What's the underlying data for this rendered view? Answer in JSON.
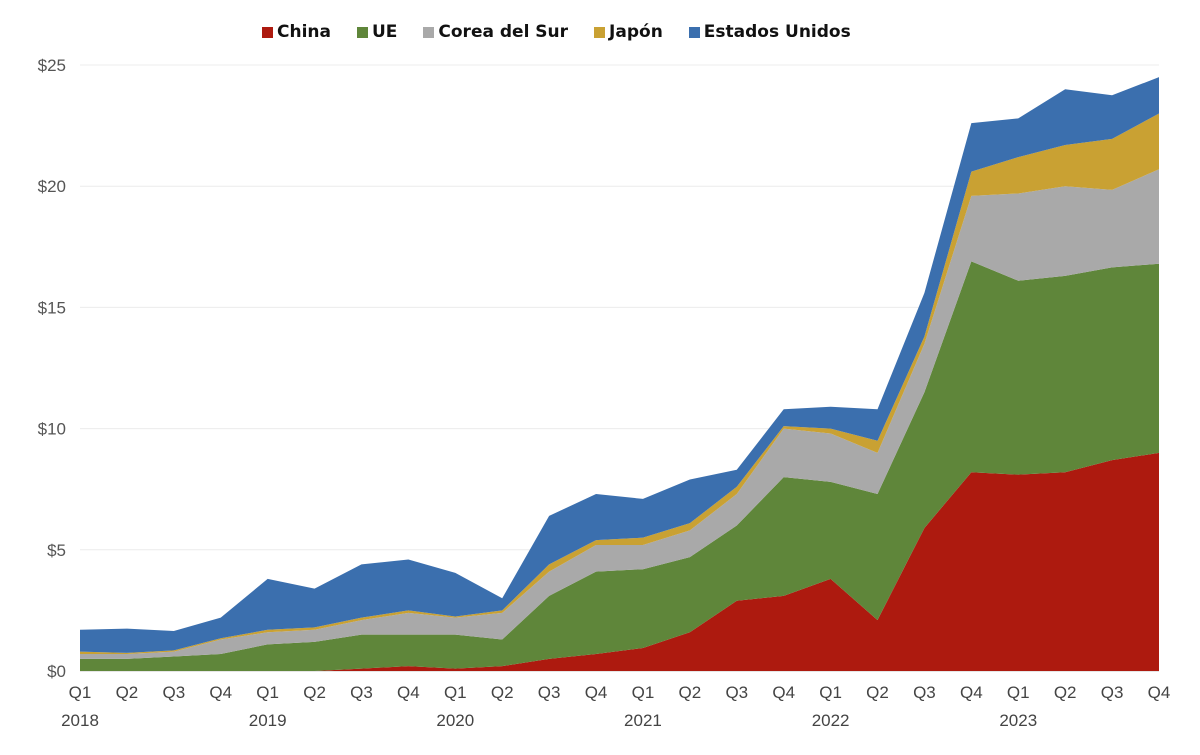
{
  "chart_data": {
    "type": "area",
    "stacked": true,
    "title": "",
    "xlabel": "",
    "ylabel": "",
    "ylim": [
      0,
      25
    ],
    "y_ticks": [
      "$0",
      "$5",
      "$10",
      "$15",
      "$20",
      "$25"
    ],
    "y_tick_values": [
      0,
      5,
      10,
      15,
      20,
      25
    ],
    "grid": true,
    "legend_position": "top",
    "categories": [
      "Q1",
      "Q2",
      "Q3",
      "Q4",
      "Q1",
      "Q2",
      "Q3",
      "Q4",
      "Q1",
      "Q2",
      "Q3",
      "Q4",
      "Q1",
      "Q2",
      "Q3",
      "Q4",
      "Q1",
      "Q2",
      "Q3",
      "Q4",
      "Q1",
      "Q2",
      "Q3",
      "Q4"
    ],
    "year_labels": [
      {
        "index": 0,
        "label": "2018"
      },
      {
        "index": 4,
        "label": "2019"
      },
      {
        "index": 8,
        "label": "2020"
      },
      {
        "index": 12,
        "label": "2021"
      },
      {
        "index": 16,
        "label": "2022"
      },
      {
        "index": 20,
        "label": "2023"
      }
    ],
    "series": [
      {
        "name": "China",
        "color": "#ad1a0f",
        "values": [
          0.0,
          0.0,
          0.0,
          0.0,
          0.0,
          0.0,
          0.1,
          0.2,
          0.1,
          0.2,
          0.5,
          0.7,
          0.95,
          1.6,
          2.9,
          3.1,
          3.8,
          2.1,
          5.9,
          8.2,
          8.1,
          8.2,
          8.7,
          9.0
        ]
      },
      {
        "name": "UE",
        "color": "#5f863a",
        "values": [
          0.5,
          0.5,
          0.6,
          0.7,
          1.1,
          1.2,
          1.4,
          1.3,
          1.4,
          1.1,
          2.6,
          3.4,
          3.25,
          3.1,
          3.1,
          4.9,
          4.0,
          5.2,
          5.6,
          8.7,
          8.0,
          8.1,
          7.95,
          7.8
        ]
      },
      {
        "name": "Corea del Sur",
        "color": "#a9a9a9",
        "values": [
          0.2,
          0.2,
          0.2,
          0.6,
          0.5,
          0.5,
          0.6,
          0.9,
          0.7,
          1.1,
          1.0,
          1.1,
          1.0,
          1.1,
          1.3,
          2.0,
          2.0,
          1.7,
          2.0,
          2.7,
          3.6,
          3.7,
          3.2,
          3.9
        ]
      },
      {
        "name": "Japón",
        "color": "#c9a133",
        "values": [
          0.1,
          0.05,
          0.05,
          0.05,
          0.1,
          0.1,
          0.1,
          0.1,
          0.05,
          0.1,
          0.3,
          0.2,
          0.3,
          0.3,
          0.3,
          0.1,
          0.2,
          0.5,
          0.3,
          1.0,
          1.5,
          1.7,
          2.1,
          2.3
        ]
      },
      {
        "name": "Estados  Unidos",
        "color": "#3b6fae",
        "values": [
          0.9,
          1.0,
          0.8,
          0.85,
          2.1,
          1.6,
          2.2,
          2.1,
          1.8,
          0.5,
          2.0,
          1.9,
          1.6,
          1.8,
          0.7,
          0.7,
          0.9,
          1.3,
          1.8,
          2.0,
          1.6,
          2.3,
          1.8,
          1.5
        ]
      }
    ]
  }
}
